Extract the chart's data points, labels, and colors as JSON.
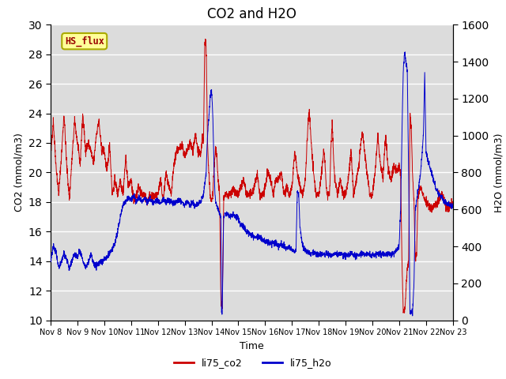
{
  "title": "CO2 and H2O",
  "xlabel": "Time",
  "ylabel_left": "CO2 (mmol/m3)",
  "ylabel_right": "H2O (mmol/m3)",
  "ylim_left": [
    10,
    30
  ],
  "ylim_right": [
    0,
    1600
  ],
  "xlim": [
    0,
    15
  ],
  "xtick_labels": [
    "Nov 8",
    "Nov 9",
    "Nov 10",
    "Nov 11",
    "Nov 12",
    "Nov 13",
    "Nov 14",
    "Nov 15",
    "Nov 16",
    "Nov 17",
    "Nov 18",
    "Nov 19",
    "Nov 20",
    "Nov 21",
    "Nov 22",
    "Nov 23"
  ],
  "yticks_left": [
    10,
    12,
    14,
    16,
    18,
    20,
    22,
    24,
    26,
    28,
    30
  ],
  "yticks_right": [
    0,
    200,
    400,
    600,
    800,
    1000,
    1200,
    1400,
    1600
  ],
  "color_co2": "#CC0000",
  "color_h2o": "#0000CC",
  "legend_co2": "li75_co2",
  "legend_h2o": "li75_h2o",
  "label_box_text": "HS_flux",
  "label_box_facecolor": "#FFFF99",
  "label_box_edgecolor": "#AAAA00",
  "label_box_textcolor": "#990000",
  "background_color": "#DCDCDC",
  "grid_color": "#FFFFFF",
  "title_fontsize": 12
}
